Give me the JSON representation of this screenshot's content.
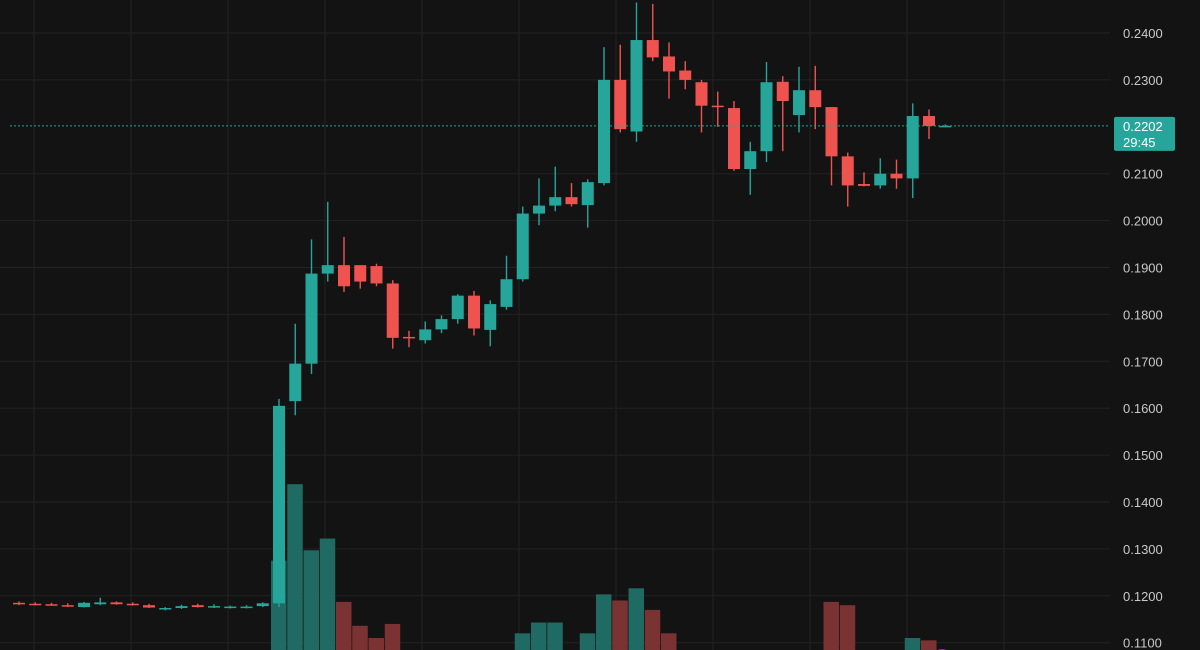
{
  "chart_data": {
    "type": "candlestick",
    "y_range": [
      0.107,
      0.248
    ],
    "y_ticks": [
      "0.2400",
      "0.2300",
      "0.2100",
      "0.2000",
      "0.1900",
      "0.1800",
      "0.1700",
      "0.1600",
      "0.1500",
      "0.1400",
      "0.1300",
      "0.1200",
      "0.1100"
    ],
    "current_price": {
      "value": "0.2202",
      "countdown": "29:45"
    },
    "colors": {
      "up": "#26a69a",
      "down": "#ef5350",
      "background": "#131313",
      "grid": "#232323",
      "price_line": "#26a69a",
      "volume_up": "#1f6b63",
      "volume_down": "#7a3332"
    },
    "candles": [
      {
        "o": 0.1185,
        "h": 0.1188,
        "l": 0.118,
        "c": 0.1182,
        "v": 0.0,
        "dir": "down"
      },
      {
        "o": 0.1183,
        "h": 0.1186,
        "l": 0.118,
        "c": 0.1181,
        "v": 0.0,
        "dir": "down"
      },
      {
        "o": 0.1182,
        "h": 0.1185,
        "l": 0.1179,
        "c": 0.1181,
        "v": 0.0,
        "dir": "down"
      },
      {
        "o": 0.118,
        "h": 0.1184,
        "l": 0.1176,
        "c": 0.1178,
        "v": 0.0,
        "dir": "down"
      },
      {
        "o": 0.1176,
        "h": 0.1187,
        "l": 0.1175,
        "c": 0.1185,
        "v": 0.0,
        "dir": "up"
      },
      {
        "o": 0.1182,
        "h": 0.1196,
        "l": 0.118,
        "c": 0.1186,
        "v": 0.0,
        "dir": "up"
      },
      {
        "o": 0.1186,
        "h": 0.1188,
        "l": 0.1181,
        "c": 0.1182,
        "v": 0.0,
        "dir": "down"
      },
      {
        "o": 0.1183,
        "h": 0.1186,
        "l": 0.1179,
        "c": 0.1181,
        "v": 0.0,
        "dir": "down"
      },
      {
        "o": 0.118,
        "h": 0.1183,
        "l": 0.1174,
        "c": 0.1175,
        "v": 0.0,
        "dir": "down"
      },
      {
        "o": 0.1172,
        "h": 0.1176,
        "l": 0.1169,
        "c": 0.1174,
        "v": 0.0,
        "dir": "up"
      },
      {
        "o": 0.1174,
        "h": 0.1181,
        "l": 0.1172,
        "c": 0.1178,
        "v": 0.0,
        "dir": "up"
      },
      {
        "o": 0.118,
        "h": 0.1183,
        "l": 0.1175,
        "c": 0.1176,
        "v": 0.0,
        "dir": "down"
      },
      {
        "o": 0.1178,
        "h": 0.1182,
        "l": 0.1174,
        "c": 0.1178,
        "v": 0.0,
        "dir": "up"
      },
      {
        "o": 0.1176,
        "h": 0.1179,
        "l": 0.1173,
        "c": 0.1177,
        "v": 0.0,
        "dir": "up"
      },
      {
        "o": 0.1176,
        "h": 0.118,
        "l": 0.1173,
        "c": 0.1177,
        "v": 0.0,
        "dir": "up"
      },
      {
        "o": 0.1178,
        "h": 0.1186,
        "l": 0.1176,
        "c": 0.1184,
        "v": 0.0,
        "dir": "up"
      },
      {
        "o": 0.1184,
        "h": 0.162,
        "l": 0.1176,
        "c": 0.1605,
        "v": 0.1275,
        "dir": "up"
      },
      {
        "o": 0.1615,
        "h": 0.178,
        "l": 0.1585,
        "c": 0.1695,
        "v": 0.1438,
        "dir": "up"
      },
      {
        "o": 0.1695,
        "h": 0.196,
        "l": 0.1673,
        "c": 0.1887,
        "v": 0.1297,
        "dir": "up"
      },
      {
        "o": 0.1887,
        "h": 0.204,
        "l": 0.187,
        "c": 0.1905,
        "v": 0.1322,
        "dir": "up"
      },
      {
        "o": 0.1905,
        "h": 0.1965,
        "l": 0.1848,
        "c": 0.186,
        "v": 0.1187,
        "dir": "down"
      },
      {
        "o": 0.1905,
        "h": 0.1905,
        "l": 0.1855,
        "c": 0.187,
        "v": 0.1136,
        "dir": "down"
      },
      {
        "o": 0.1903,
        "h": 0.1908,
        "l": 0.186,
        "c": 0.1866,
        "v": 0.111,
        "dir": "down"
      },
      {
        "o": 0.1866,
        "h": 0.1873,
        "l": 0.1727,
        "c": 0.175,
        "v": 0.114,
        "dir": "down"
      },
      {
        "o": 0.1752,
        "h": 0.1765,
        "l": 0.173,
        "c": 0.175,
        "v": 0.106,
        "dir": "down"
      },
      {
        "o": 0.1745,
        "h": 0.1785,
        "l": 0.1738,
        "c": 0.1768,
        "v": 0.106,
        "dir": "up"
      },
      {
        "o": 0.1768,
        "h": 0.1798,
        "l": 0.176,
        "c": 0.179,
        "v": 0.106,
        "dir": "up"
      },
      {
        "o": 0.179,
        "h": 0.1843,
        "l": 0.178,
        "c": 0.184,
        "v": 0.106,
        "dir": "up"
      },
      {
        "o": 0.184,
        "h": 0.185,
        "l": 0.1755,
        "c": 0.177,
        "v": 0.106,
        "dir": "down"
      },
      {
        "o": 0.1767,
        "h": 0.183,
        "l": 0.1732,
        "c": 0.1822,
        "v": 0.106,
        "dir": "up"
      },
      {
        "o": 0.1816,
        "h": 0.1925,
        "l": 0.181,
        "c": 0.1875,
        "v": 0.1082,
        "dir": "up"
      },
      {
        "o": 0.1875,
        "h": 0.203,
        "l": 0.187,
        "c": 0.2015,
        "v": 0.112,
        "dir": "up"
      },
      {
        "o": 0.2015,
        "h": 0.209,
        "l": 0.199,
        "c": 0.2032,
        "v": 0.1143,
        "dir": "up"
      },
      {
        "o": 0.2032,
        "h": 0.2115,
        "l": 0.202,
        "c": 0.205,
        "v": 0.1143,
        "dir": "up"
      },
      {
        "o": 0.205,
        "h": 0.208,
        "l": 0.203,
        "c": 0.2035,
        "v": 0.1082,
        "dir": "down"
      },
      {
        "o": 0.2033,
        "h": 0.2088,
        "l": 0.1985,
        "c": 0.2082,
        "v": 0.112,
        "dir": "up"
      },
      {
        "o": 0.208,
        "h": 0.237,
        "l": 0.2075,
        "c": 0.23,
        "v": 0.1203,
        "dir": "up"
      },
      {
        "o": 0.23,
        "h": 0.2375,
        "l": 0.2188,
        "c": 0.2195,
        "v": 0.119,
        "dir": "down"
      },
      {
        "o": 0.219,
        "h": 0.2465,
        "l": 0.2168,
        "c": 0.2385,
        "v": 0.1216,
        "dir": "up"
      },
      {
        "o": 0.2385,
        "h": 0.2462,
        "l": 0.234,
        "c": 0.2348,
        "v": 0.117,
        "dir": "down"
      },
      {
        "o": 0.235,
        "h": 0.238,
        "l": 0.226,
        "c": 0.2318,
        "v": 0.112,
        "dir": "down"
      },
      {
        "o": 0.232,
        "h": 0.234,
        "l": 0.228,
        "c": 0.23,
        "v": 0.108,
        "dir": "down"
      },
      {
        "o": 0.2295,
        "h": 0.23,
        "l": 0.2188,
        "c": 0.2245,
        "v": 0.106,
        "dir": "down"
      },
      {
        "o": 0.2244,
        "h": 0.2275,
        "l": 0.22,
        "c": 0.2245,
        "v": 0.106,
        "dir": "down"
      },
      {
        "o": 0.224,
        "h": 0.2255,
        "l": 0.2106,
        "c": 0.211,
        "v": 0.108,
        "dir": "down"
      },
      {
        "o": 0.211,
        "h": 0.2168,
        "l": 0.2055,
        "c": 0.2148,
        "v": 0.108,
        "dir": "up"
      },
      {
        "o": 0.2148,
        "h": 0.2338,
        "l": 0.2125,
        "c": 0.2295,
        "v": 0.108,
        "dir": "up"
      },
      {
        "o": 0.2296,
        "h": 0.2308,
        "l": 0.2148,
        "c": 0.2255,
        "v": 0.106,
        "dir": "down"
      },
      {
        "o": 0.2225,
        "h": 0.2328,
        "l": 0.2188,
        "c": 0.2278,
        "v": 0.106,
        "dir": "up"
      },
      {
        "o": 0.2278,
        "h": 0.233,
        "l": 0.2195,
        "c": 0.2242,
        "v": 0.106,
        "dir": "down"
      },
      {
        "o": 0.2242,
        "h": 0.2242,
        "l": 0.2075,
        "c": 0.2137,
        "v": 0.1187,
        "dir": "down"
      },
      {
        "o": 0.2137,
        "h": 0.2145,
        "l": 0.203,
        "c": 0.2075,
        "v": 0.118,
        "dir": "down"
      },
      {
        "o": 0.2078,
        "h": 0.2103,
        "l": 0.2073,
        "c": 0.2074,
        "v": 0.106,
        "dir": "down"
      },
      {
        "o": 0.2075,
        "h": 0.2133,
        "l": 0.2068,
        "c": 0.21,
        "v": 0.108,
        "dir": "up"
      },
      {
        "o": 0.21,
        "h": 0.213,
        "l": 0.2068,
        "c": 0.209,
        "v": 0.106,
        "dir": "down"
      },
      {
        "o": 0.209,
        "h": 0.225,
        "l": 0.2048,
        "c": 0.2223,
        "v": 0.111,
        "dir": "up"
      },
      {
        "o": 0.2223,
        "h": 0.2237,
        "l": 0.2174,
        "c": 0.2202,
        "v": 0.1105,
        "dir": "down"
      },
      {
        "o": 0.2202,
        "h": 0.2205,
        "l": 0.22,
        "c": 0.2202,
        "v": 0.0,
        "dir": "up"
      }
    ]
  }
}
